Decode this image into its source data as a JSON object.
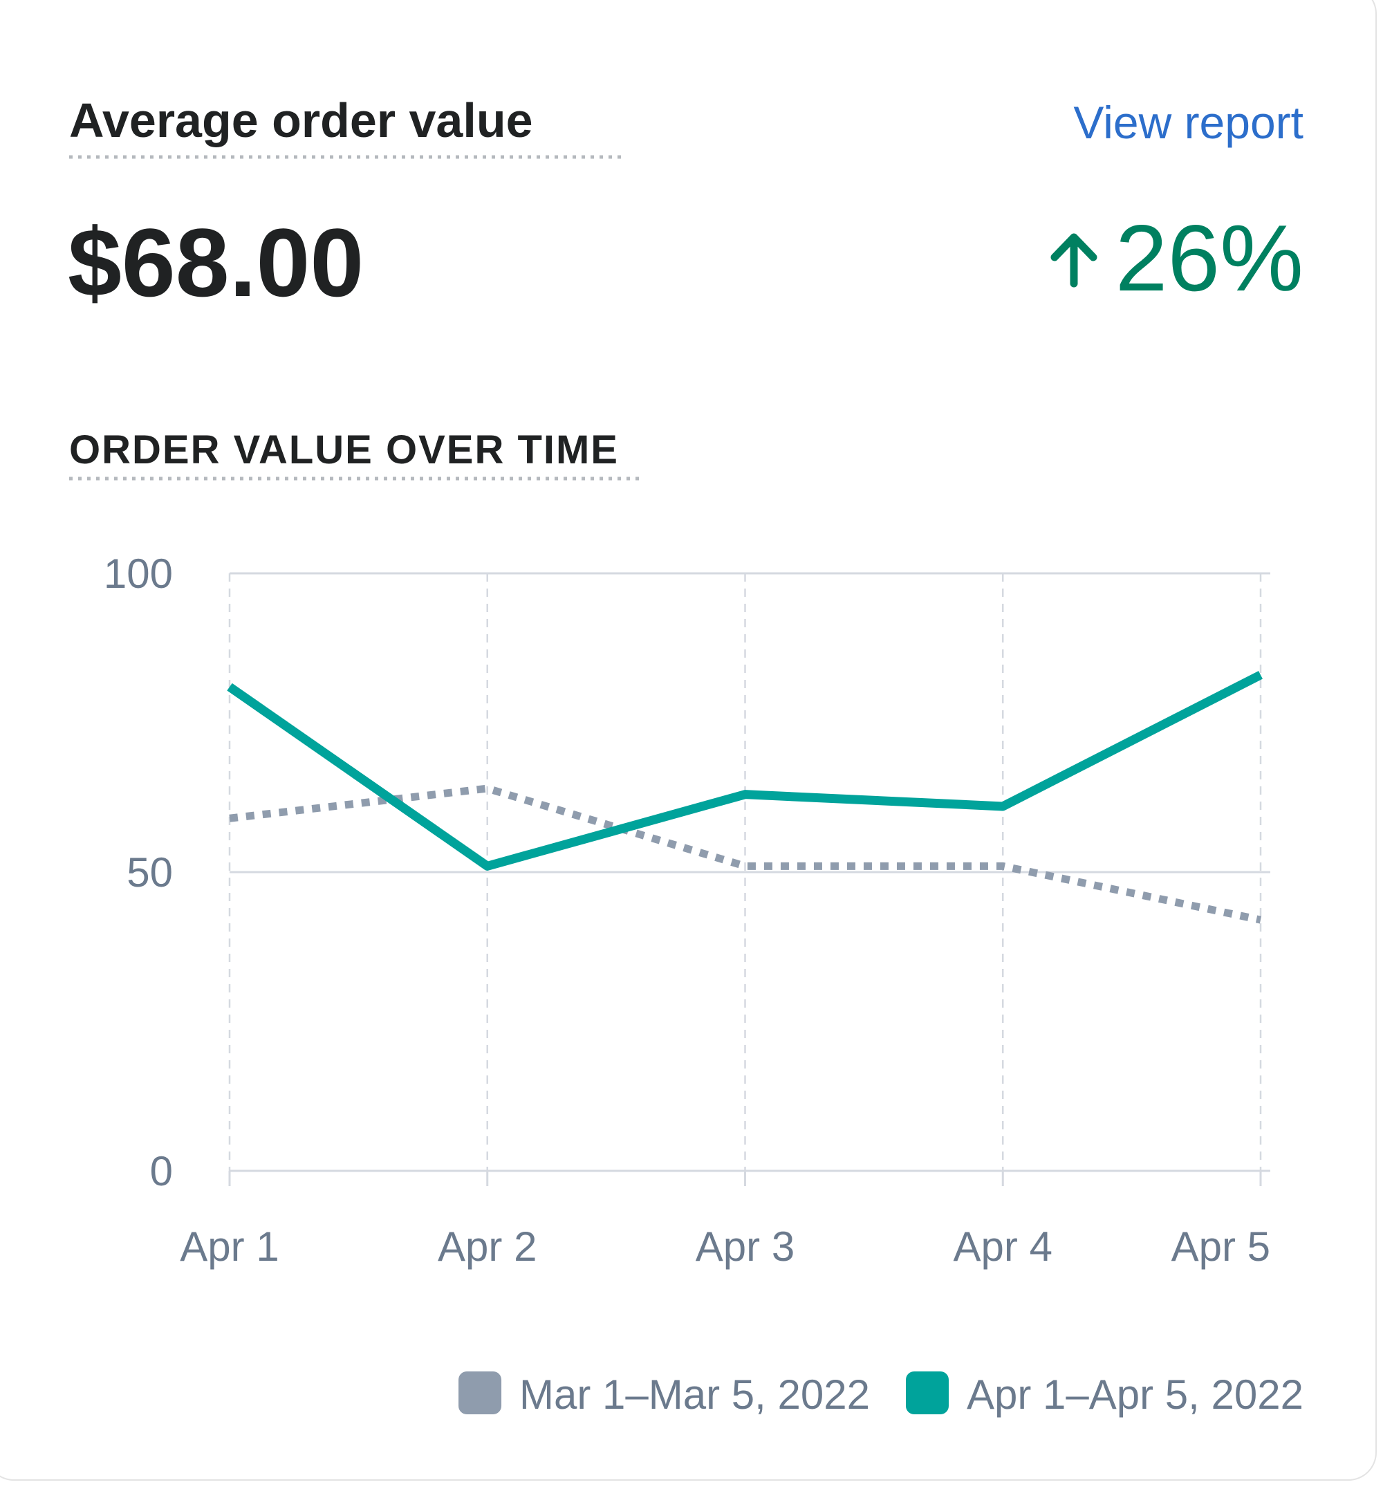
{
  "card": {
    "title": "Average order value",
    "link": "View report",
    "value": "$68.00",
    "change": "26%"
  },
  "chart_data": {
    "type": "line",
    "title": "ORDER VALUE OVER TIME",
    "categories": [
      "Apr 1",
      "Apr 2",
      "Apr 3",
      "Apr 4",
      "Apr 5"
    ],
    "series": [
      {
        "name": "Mar 1–Mar 5, 2022",
        "color": "#8f9cad",
        "style": "dotted",
        "values": [
          59,
          64,
          51,
          51,
          42
        ]
      },
      {
        "name": "Apr 1–Apr 5, 2022",
        "color": "#00a39b",
        "style": "solid",
        "values": [
          81,
          51,
          63,
          61,
          83
        ]
      }
    ],
    "ylim": [
      0,
      100
    ],
    "yticks": [
      0,
      50,
      100
    ],
    "grid": true
  }
}
